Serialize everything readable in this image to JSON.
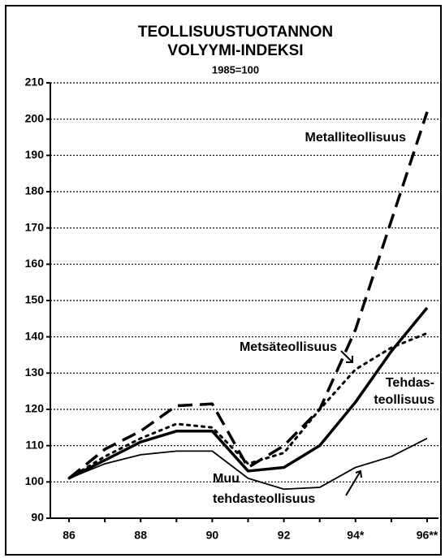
{
  "chart_data": {
    "type": "line",
    "title": [
      "TEOLLISUUSTUOTANNON",
      "VOLYYMI-INDEKSI"
    ],
    "subtitle": "1985=100",
    "categories": [
      "86",
      null,
      "88",
      null,
      "90",
      null,
      "92",
      null,
      "94*",
      null,
      "96**"
    ],
    "series": [
      {
        "name": [
          "Metalliteollisuus"
        ],
        "color": "#000000",
        "style": "dashed",
        "values": [
          101,
          109,
          114,
          121,
          121.5,
          104,
          110,
          120,
          142,
          172,
          202
        ]
      },
      {
        "name": [
          "Metsäteollisuus"
        ],
        "color": "#000000",
        "style": "dotted",
        "values": [
          101,
          107,
          112,
          116,
          115,
          105,
          108,
          120,
          131,
          137,
          141
        ]
      },
      {
        "name": [
          "Tehdas-",
          "teollisuus"
        ],
        "color": "#000000",
        "style": "thick",
        "values": [
          101,
          106,
          111,
          114,
          114,
          103,
          104,
          110,
          122,
          136,
          148
        ]
      },
      {
        "name": [
          "Muu",
          "tehdasteollisuus"
        ],
        "color": "#000000",
        "style": "thin",
        "values": [
          101,
          105,
          107.5,
          108.5,
          108.5,
          101,
          98,
          98.5,
          104,
          107,
          112
        ]
      }
    ],
    "ylim": [
      90,
      210
    ],
    "yticks": [
      90,
      100,
      110,
      120,
      130,
      140,
      150,
      160,
      170,
      180,
      190,
      200,
      210
    ],
    "grid": true
  }
}
